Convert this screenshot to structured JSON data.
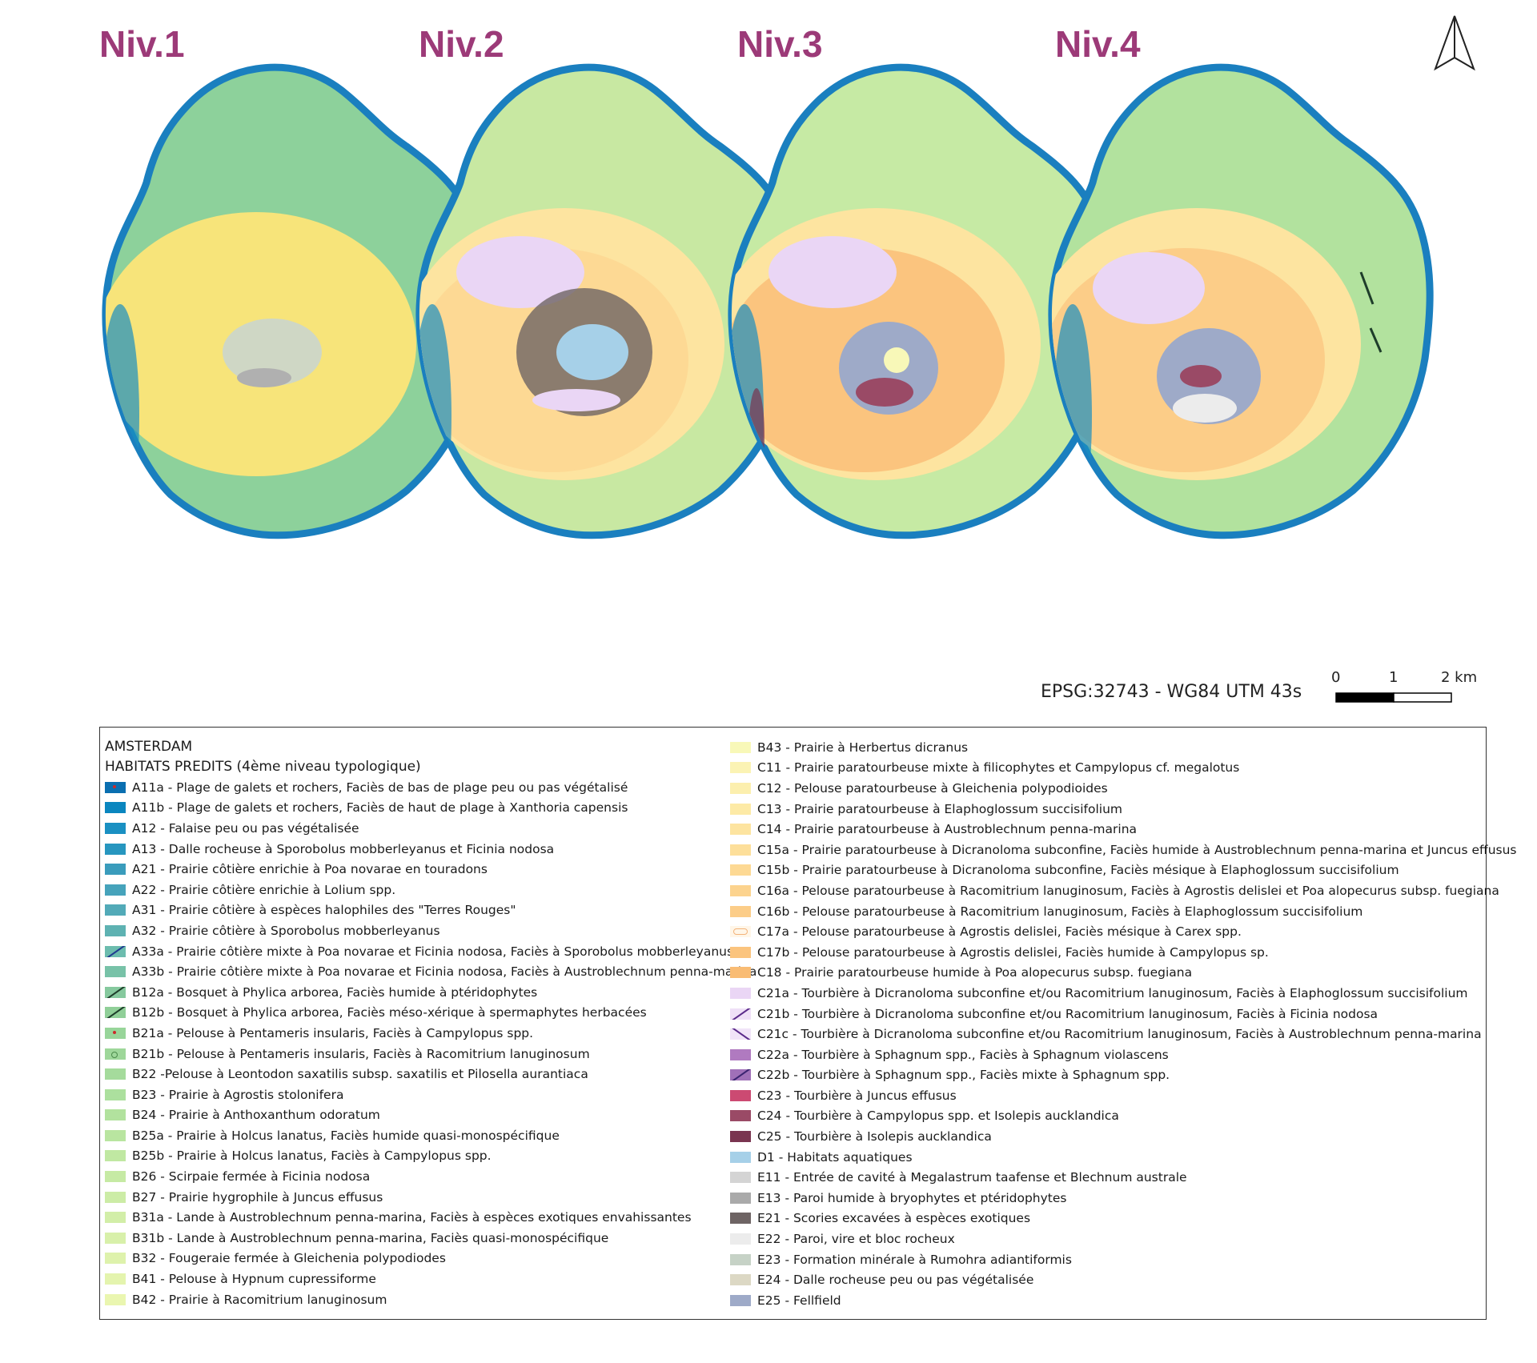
{
  "map_titles": [
    "Niv.1",
    "Niv.2",
    "Niv.3",
    "Niv.4"
  ],
  "crs": "EPSG:32743 - WG84 UTM 43s",
  "scale_bar": {
    "labels": [
      "0",
      "1",
      "2 km"
    ]
  },
  "north_arrow": "north-arrow-icon",
  "legend": {
    "title1": "AMSTERDAM",
    "title2": "HABITATS PREDITS (4ème niveau typologique)",
    "items": [
      {
        "code": "A11a",
        "label": "A11a - Plage de galets et rochers, Faciès de bas de plage peu ou pas végétalisé",
        "color": "#0a6fb0",
        "pattern": "dot-red"
      },
      {
        "code": "A11b",
        "label": "A11b - Plage de galets et rochers, Faciès de haut de plage à Xanthoria capensis",
        "color": "#0a86bf",
        "pattern": ""
      },
      {
        "code": "A12",
        "label": "A12 - Falaise peu ou pas végétalisée",
        "color": "#1a90c2",
        "pattern": ""
      },
      {
        "code": "A13",
        "label": "A13 - Dalle rocheuse à Sporobolus mobberleyanus et Ficinia nodosa",
        "color": "#2796bf",
        "pattern": ""
      },
      {
        "code": "A21",
        "label": "A21 - Prairie côtière enrichie à Poa novarae en touradons",
        "color": "#3a9cbc",
        "pattern": ""
      },
      {
        "code": "A22",
        "label": "A22 - Prairie côtière enrichie à Lolium spp.",
        "color": "#46a3bb",
        "pattern": ""
      },
      {
        "code": "A31",
        "label": "A31 - Prairie côtière à espèces halophiles des \"Terres Rouges\"",
        "color": "#52aab8",
        "pattern": ""
      },
      {
        "code": "A32",
        "label": "A32 - Prairie côtière à Sporobolus mobberleyanus",
        "color": "#5eb2b2",
        "pattern": ""
      },
      {
        "code": "A33a",
        "label": "A33a - Prairie côtière mixte à Poa novarae et Ficinia nodosa, Faciès à Sporobolus mobberleyanus",
        "color": "#6cbcae",
        "pattern": "hatch-blue"
      },
      {
        "code": "A33b",
        "label": "A33b - Prairie côtière mixte à Poa novarae et Ficinia nodosa, Faciès à Austroblechnum penna-marina",
        "color": "#78c2a8",
        "pattern": ""
      },
      {
        "code": "B12a",
        "label": "B12a - Bosquet à Phylica arborea, Faciès humide à ptéridophytes",
        "color": "#86c99e",
        "pattern": "hatch-dark"
      },
      {
        "code": "B12b",
        "label": "B12b - Bosquet à Phylica arborea, Faciès méso-xérique à spermaphytes herbacées",
        "color": "#90cf98",
        "pattern": "hatch-dark"
      },
      {
        "code": "B21a",
        "label": "B21a - Pelouse à Pentameris insularis, Faciès à Campylopus spp.",
        "color": "#98d59a",
        "pattern": "dot-red"
      },
      {
        "code": "B21b",
        "label": "B21b - Pelouse à Pentameris insularis, Faciès à Racomitrium lanuginosum",
        "color": "#9ed79a",
        "pattern": "dot-green"
      },
      {
        "code": "B22",
        "label": "B22 -Pelouse à Leontodon saxatilis subsp. saxatilis et Pilosella aurantiaca",
        "color": "#a5db9c",
        "pattern": ""
      },
      {
        "code": "B23",
        "label": "B23 - Prairie à Agrostis stolonifera",
        "color": "#ace09e",
        "pattern": ""
      },
      {
        "code": "B24",
        "label": "B24 - Prairie à Anthoxanthum odoratum",
        "color": "#b2e29e",
        "pattern": ""
      },
      {
        "code": "B25a",
        "label": "B25a - Prairie à Holcus lanatus, Faciès humide quasi-monospécifique",
        "color": "#b9e5a0",
        "pattern": ""
      },
      {
        "code": "B25b",
        "label": "B25b - Prairie à Holcus lanatus, Faciès à Campylopus spp.",
        "color": "#c0e8a2",
        "pattern": ""
      },
      {
        "code": "B26",
        "label": "B26 - Scirpaie fermée à Ficinia nodosa",
        "color": "#c6eaa4",
        "pattern": ""
      },
      {
        "code": "B27",
        "label": "B27 - Prairie hygrophile à Juncus effusus",
        "color": "#ccecA6",
        "pattern": ""
      },
      {
        "code": "B31a",
        "label": "B31a - Lande à Austroblechnum penna-marina, Faciès à espèces exotiques envahissantes",
        "color": "#d2eea8",
        "pattern": ""
      },
      {
        "code": "B31b",
        "label": "B31b - Lande à Austroblechnum penna-marina, Faciès quasi-monospécifique",
        "color": "#d8f0aa",
        "pattern": ""
      },
      {
        "code": "B32",
        "label": "B32 - Fougeraie fermée à Gleichenia polypodiodes",
        "color": "#def2ac",
        "pattern": ""
      },
      {
        "code": "B41",
        "label": "B41 - Pelouse à Hypnum cupressiforme",
        "color": "#e4f4ae",
        "pattern": ""
      },
      {
        "code": "B42",
        "label": "B42 - Prairie à Racomitrium lanuginosum",
        "color": "#eaf6b0",
        "pattern": ""
      },
      {
        "code": "B43",
        "label": "B43 - Prairie à Herbertus dicranus",
        "color": "#f8f8b8",
        "pattern": ""
      },
      {
        "code": "C11",
        "label": "C11 - Prairie paratourbeuse mixte à filicophytes et Campylopus cf. megalotus",
        "color": "#fbf3b4",
        "pattern": ""
      },
      {
        "code": "C12",
        "label": "C12 - Pelouse paratourbeuse à Gleichenia polypodioides",
        "color": "#fcefae",
        "pattern": ""
      },
      {
        "code": "C13",
        "label": "C13 - Prairie paratourbeuse à Elaphoglossum succisifolium",
        "color": "#fdeaa6",
        "pattern": ""
      },
      {
        "code": "C14",
        "label": "C14 - Prairie paratourbeuse à Austroblechnum penna-marina",
        "color": "#fde4a0",
        "pattern": ""
      },
      {
        "code": "C15a",
        "label": "C15a - Prairie paratourbeuse à Dicranoloma subconfine, Faciès humide à Austroblechnum penna-marina et Juncus effusus",
        "color": "#fddf9a",
        "pattern": ""
      },
      {
        "code": "C15b",
        "label": "C15b - Prairie paratourbeuse à Dicranoloma subconfine, Faciès mésique à Elaphoglossum succisifolium",
        "color": "#fdd994",
        "pattern": ""
      },
      {
        "code": "C16a",
        "label": "C16a - Pelouse paratourbeuse à Racomitrium lanuginosum, Faciès à Agrostis delislei et Poa alopecurus subsp. fuegiana",
        "color": "#fcd38e",
        "pattern": ""
      },
      {
        "code": "C16b",
        "label": "C16b - Pelouse paratourbeuse à Racomitrium lanuginosum, Faciès à Elaphoglossum succisifolium",
        "color": "#fccd88",
        "pattern": ""
      },
      {
        "code": "C17a",
        "label": "C17a - Pelouse paratourbeuse à Agrostis delislei, Faciès mésique à Carex spp.",
        "color": "#fff6e8",
        "pattern": "ring"
      },
      {
        "code": "C17b",
        "label": "C17b - Pelouse paratourbeuse à Agrostis delislei, Faciès humide à Campylopus sp.",
        "color": "#fbc47e",
        "pattern": ""
      },
      {
        "code": "C18",
        "label": "C18 - Prairie paratourbeuse humide à Poa alopecurus subsp. fuegiana",
        "color": "#f9bc74",
        "pattern": ""
      },
      {
        "code": "C21a",
        "label": "C21a - Tourbière à Dicranoloma subconfine et/ou Racomitrium lanuginosum, Faciès à Elaphoglossum succisifolium",
        "color": "#ead6f5",
        "pattern": ""
      },
      {
        "code": "C21b",
        "label": "C21b - Tourbière à Dicranoloma subconfine et/ou Racomitrium lanuginosum, Faciès à Ficinia nodosa",
        "color": "#efe0f7",
        "pattern": "hatch-purple"
      },
      {
        "code": "C21c",
        "label": "C21c - Tourbière à Dicranoloma subconfine et/ou Racomitrium lanuginosum, Faciès à Austroblechnum penna-marina",
        "color": "#f1e4f8",
        "pattern": "diag-purple"
      },
      {
        "code": "C22a",
        "label": "C22a - Tourbière à Sphagnum spp., Faciès à Sphagnum violascens",
        "color": "#b07ac0",
        "pattern": ""
      },
      {
        "code": "C22b",
        "label": "C22b - Tourbière à Sphagnum spp., Faciès mixte à Sphagnum spp.",
        "color": "#a070b8",
        "pattern": "hatch-violet"
      },
      {
        "code": "C23",
        "label": "C23 - Tourbière à Juncus effusus",
        "color": "#cc4a72",
        "pattern": ""
      },
      {
        "code": "C24",
        "label": "C24 - Tourbière à Campylopus spp. et Isolepis aucklandica",
        "color": "#9a4a66",
        "pattern": ""
      },
      {
        "code": "C25",
        "label": "C25 - Tourbière à Isolepis aucklandica",
        "color": "#7a3550",
        "pattern": ""
      },
      {
        "code": "D1",
        "label": "D1 - Habitats aquatiques",
        "color": "#a6d0e8",
        "pattern": ""
      },
      {
        "code": "E11",
        "label": "E11 - Entrée de cavité à Megalastrum taafense et Blechnum australe",
        "color": "#d4d4d4",
        "pattern": ""
      },
      {
        "code": "E13",
        "label": "E13 - Paroi humide à bryophytes et ptéridophytes",
        "color": "#aaaaaa",
        "pattern": ""
      },
      {
        "code": "E21",
        "label": "E21 - Scories excavées à espèces exotiques",
        "color": "#6e6464",
        "pattern": ""
      },
      {
        "code": "E22",
        "label": "E22 - Paroi, vire et bloc rocheux",
        "color": "#ececec",
        "pattern": ""
      },
      {
        "code": "E23",
        "label": "E23 - Formation minérale à Rumohra adiantiformis",
        "color": "#c6d2c6",
        "pattern": ""
      },
      {
        "code": "E24",
        "label": "E24 - Dalle rocheuse peu ou pas végétalisée",
        "color": "#dcd8c4",
        "pattern": ""
      },
      {
        "code": "E25",
        "label": "E25 - Fellfield",
        "color": "#9eaac8",
        "pattern": ""
      }
    ]
  }
}
